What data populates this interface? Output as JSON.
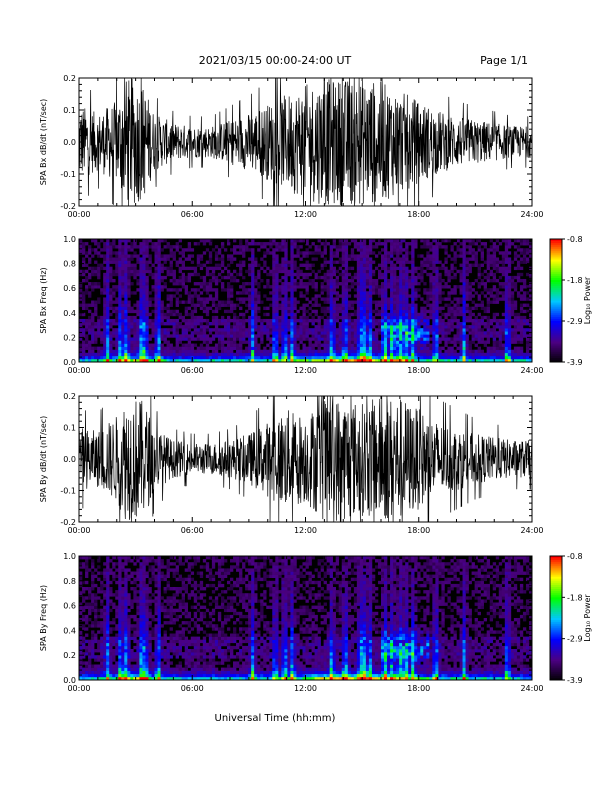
{
  "header": {
    "title": "2021/03/15  00:00-24:00 UT",
    "page": "Page 1/1"
  },
  "xlabel": "Universal Time (hh:mm)",
  "colors": {
    "trace": "#000000",
    "background": "#ffffff",
    "colormap": [
      "#000000",
      "#4b0082",
      "#0000ff",
      "#00c8ff",
      "#00ff00",
      "#ffff00",
      "#ff0000"
    ]
  },
  "chart_data": [
    {
      "type": "line",
      "ylabel": "SPA Bx dB/dt (nT/sec)",
      "xlim": [
        0,
        24
      ],
      "ylim": [
        -0.2,
        0.2
      ],
      "xticks": [
        "00:00",
        "06:00",
        "12:00",
        "18:00",
        "24:00"
      ],
      "yticks": [
        "-0.2",
        "-0.1",
        "0.0",
        "0.1",
        "0.2"
      ],
      "envelope": {
        "hours": [
          0,
          1,
          2,
          2.5,
          3,
          3.5,
          4,
          5,
          6,
          7,
          8,
          9,
          10,
          11,
          12,
          13,
          14,
          15,
          16,
          17,
          18,
          19,
          20,
          21,
          22,
          23,
          24
        ],
        "amplitude": [
          0.12,
          0.09,
          0.13,
          0.2,
          0.2,
          0.17,
          0.09,
          0.06,
          0.05,
          0.05,
          0.07,
          0.09,
          0.12,
          0.15,
          0.18,
          0.2,
          0.2,
          0.2,
          0.19,
          0.16,
          0.13,
          0.1,
          0.08,
          0.07,
          0.06,
          0.05,
          0.05
        ]
      }
    },
    {
      "type": "heatmap",
      "ylabel": "SPA Bx Freq (Hz)",
      "xlim": [
        0,
        24
      ],
      "ylim": [
        0,
        1.0
      ],
      "xticks": [
        "00:00",
        "06:00",
        "12:00",
        "18:00",
        "24:00"
      ],
      "yticks": [
        "0.0",
        "0.2",
        "0.4",
        "0.6",
        "0.8",
        "1.0"
      ],
      "colorbar": {
        "label": "Log₁₀ Power",
        "range": [
          -3.9,
          -0.8
        ],
        "ticks": [
          "-0.8",
          "-1.8",
          "-2.9",
          "-3.9"
        ]
      }
    },
    {
      "type": "line",
      "ylabel": "SPA By dB/dt (nT/sec)",
      "xlim": [
        0,
        24
      ],
      "ylim": [
        -0.2,
        0.2
      ],
      "xticks": [
        "00:00",
        "06:00",
        "12:00",
        "18:00",
        "24:00"
      ],
      "yticks": [
        "-0.2",
        "-0.1",
        "0.0",
        "0.1",
        "0.2"
      ],
      "envelope": {
        "hours": [
          0,
          1,
          2,
          2.5,
          3,
          3.5,
          4,
          5,
          6,
          7,
          8,
          9,
          10,
          11,
          12,
          13,
          14,
          15,
          16,
          17,
          18,
          19,
          20,
          21,
          22,
          23,
          24
        ],
        "amplitude": [
          0.1,
          0.09,
          0.14,
          0.2,
          0.2,
          0.18,
          0.1,
          0.06,
          0.05,
          0.05,
          0.06,
          0.08,
          0.12,
          0.16,
          0.14,
          0.2,
          0.2,
          0.18,
          0.2,
          0.2,
          0.16,
          0.12,
          0.1,
          0.08,
          0.07,
          0.06,
          0.06
        ]
      }
    },
    {
      "type": "heatmap",
      "ylabel": "SPA By Freq (Hz)",
      "xlim": [
        0,
        24
      ],
      "ylim": [
        0,
        1.0
      ],
      "xticks": [
        "00:00",
        "06:00",
        "12:00",
        "18:00",
        "24:00"
      ],
      "yticks": [
        "0.0",
        "0.2",
        "0.4",
        "0.6",
        "0.8",
        "1.0"
      ],
      "colorbar": {
        "label": "Log₁₀ Power",
        "range": [
          -3.9,
          -0.8
        ],
        "ticks": [
          "-0.8",
          "-1.8",
          "-2.9",
          "-3.9"
        ]
      }
    }
  ]
}
